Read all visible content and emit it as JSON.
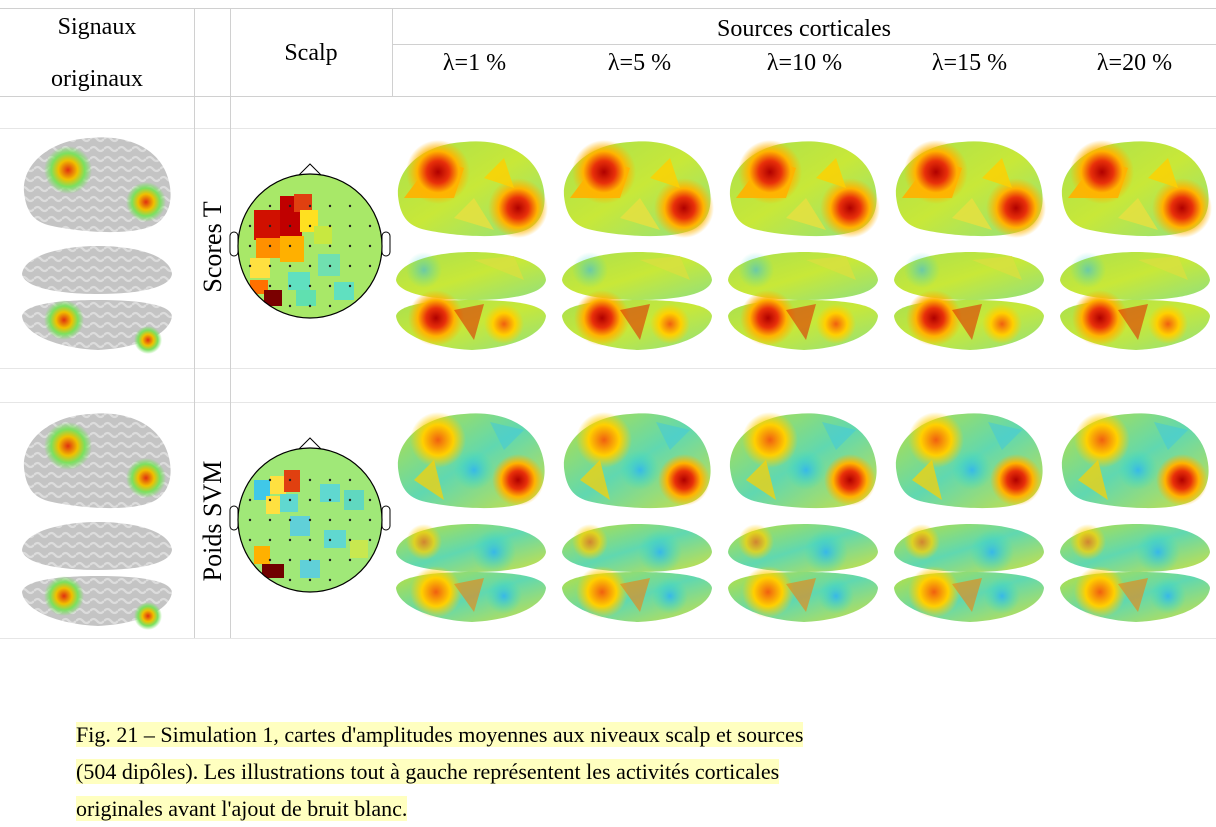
{
  "header": {
    "col1_line1": "Signaux",
    "col1_line2": "originaux",
    "col2": "Scalp",
    "sources_title": "Sources corticales",
    "lambdas": [
      "λ=1 %",
      "λ=5 %",
      "λ=10 %",
      "λ=15 %",
      "λ=20 %"
    ]
  },
  "rows": [
    {
      "label": "Scores T"
    },
    {
      "label": "Poids SVM"
    }
  ],
  "caption": {
    "line1": "Fig. 21 – Simulation 1, cartes d'amplitudes moyennes aux niveaux scalp et sources",
    "line2": "(504 dipôles). Les illustrations tout à gauche représentent les activités corticales",
    "line3": "originales avant l'ajout de bruit blanc."
  }
}
